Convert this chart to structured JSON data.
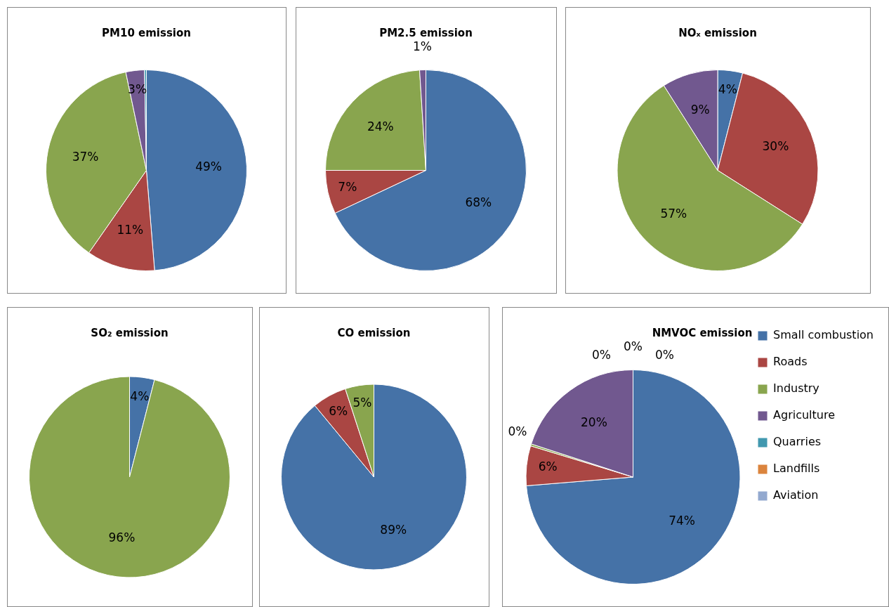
{
  "chart_data": [
    {
      "type": "pie",
      "title": "PM10 emission",
      "categories": [
        null,
        null,
        null,
        null,
        null
      ],
      "values": [
        48.7,
        11,
        37,
        3,
        0.3
      ],
      "value_labels": [
        "49%",
        "11%",
        "37%",
        "3%",
        null
      ],
      "colors": [
        "#4572a7",
        "#aa4643",
        "#89a54e",
        "#71588f",
        "#4198af"
      ],
      "legend": false
    },
    {
      "type": "pie",
      "title": "PM2.5 emission",
      "categories": [
        null,
        null,
        null,
        null
      ],
      "values": [
        68,
        7,
        24,
        1
      ],
      "value_labels": [
        "68%",
        "7%",
        "24%",
        "1%"
      ],
      "colors": [
        "#4572a7",
        "#aa4643",
        "#89a54e",
        "#71588f"
      ],
      "legend": false
    },
    {
      "type": "pie",
      "title": "NOₓ emission",
      "categories": [
        null,
        null,
        null,
        null
      ],
      "values": [
        4,
        30,
        57,
        9
      ],
      "value_labels": [
        "4%",
        "30%",
        "57%",
        "9%"
      ],
      "colors": [
        "#4572a7",
        "#aa4643",
        "#89a54e",
        "#71588f"
      ],
      "legend": false
    },
    {
      "type": "pie",
      "title": "SO₂ emission",
      "categories": [
        null,
        null
      ],
      "values": [
        4,
        96
      ],
      "value_labels": [
        "4%",
        "96%"
      ],
      "colors": [
        "#4572a7",
        "#89a54e"
      ],
      "legend": false
    },
    {
      "type": "pie",
      "title": "CO emission",
      "categories": [
        null,
        null,
        null
      ],
      "values": [
        89,
        6,
        5
      ],
      "value_labels": [
        "89%",
        "6%",
        "5%"
      ],
      "colors": [
        "#4572a7",
        "#aa4643",
        "#89a54e"
      ],
      "legend": false
    },
    {
      "type": "pie",
      "title": "NMVOC emission",
      "categories": [
        "Small combustion",
        "Roads",
        "Industry",
        "Agriculture",
        "Quarries",
        "Landfills",
        "Aviation"
      ],
      "values": [
        73.7,
        6,
        0.3,
        20,
        0,
        0,
        0
      ],
      "value_labels": [
        "74%",
        "6%",
        "0%",
        "20%",
        "0%",
        "0%",
        "0%"
      ],
      "colors": [
        "#4572a7",
        "#aa4643",
        "#89a54e",
        "#71588f",
        "#4198af",
        "#db843d",
        "#93a9cf"
      ],
      "legend": "right"
    }
  ]
}
